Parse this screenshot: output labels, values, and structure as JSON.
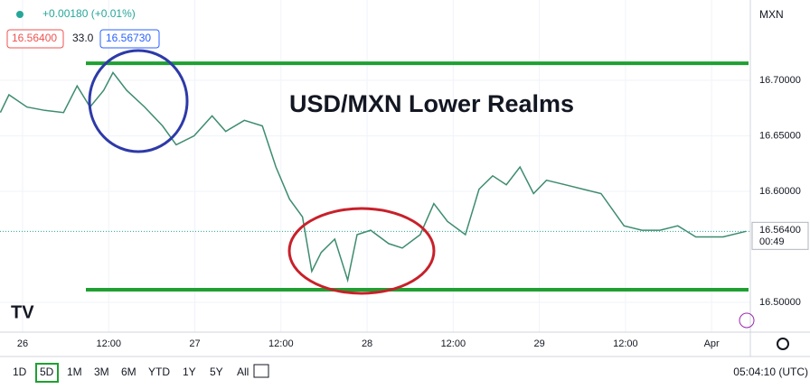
{
  "chart_data": {
    "type": "line",
    "title": "USD/MXN Lower Realms",
    "change": "+0.00180 (+0.01%)",
    "bid": "16.56400",
    "spread": "33.0",
    "ask": "16.56730",
    "currency": "MXN",
    "last_price": 16.564,
    "last_price_label": "16.56400",
    "countdown": "00:49",
    "ranges": [
      "1D",
      "5D",
      "1M",
      "3M",
      "6M",
      "YTD",
      "1Y",
      "5Y",
      "All"
    ],
    "active_range": "5D",
    "clock": "05:04:10 (UTC)",
    "x": [
      -3.1,
      -1.9,
      0.6,
      3.1,
      5.7,
      7.6,
      9.4,
      11.3,
      12.6,
      14.5,
      17.0,
      19.5,
      21.4,
      23.9,
      26.4,
      28.3,
      30.9,
      33.4,
      35.3,
      37.2,
      39.0,
      40.3,
      41.6,
      43.5,
      45.3,
      46.6,
      48.5,
      51.0,
      52.9,
      55.4,
      57.3,
      59.2,
      61.7,
      63.6,
      65.5,
      67.4,
      69.3,
      71.2,
      73.0,
      75.6,
      78.1,
      80.6,
      83.8,
      86.3,
      88.8,
      91.3,
      93.8,
      95.7,
      97.6,
      100.8
    ],
    "series": [
      {
        "name": "USD/MXN",
        "color": "#3d8c6e",
        "values": [
          16.671,
          16.687,
          16.676,
          16.673,
          16.671,
          16.695,
          16.676,
          16.691,
          16.707,
          16.691,
          16.676,
          16.659,
          16.642,
          16.65,
          16.668,
          16.654,
          16.664,
          16.659,
          16.622,
          16.593,
          16.577,
          16.528,
          16.545,
          16.557,
          16.52,
          16.561,
          16.565,
          16.553,
          16.549,
          16.561,
          16.589,
          16.573,
          16.561,
          16.602,
          16.614,
          16.606,
          16.622,
          16.598,
          16.61,
          16.606,
          16.602,
          16.598,
          16.569,
          16.565,
          16.565,
          16.569,
          16.559,
          16.559,
          16.559,
          16.564
        ]
      }
    ],
    "levels": [
      {
        "value": 16.7154,
        "color": "#1fa032"
      },
      {
        "value": 16.5114,
        "color": "#1fa032"
      }
    ],
    "xlim": [
      -3.15,
      101.4
    ],
    "xticks": [
      {
        "value": 0,
        "label": "26"
      },
      {
        "value": 12,
        "label": "12:00"
      },
      {
        "value": 24,
        "label": "27"
      },
      {
        "value": 36,
        "label": "12:00"
      },
      {
        "value": 48,
        "label": "28"
      },
      {
        "value": 60,
        "label": "12:00"
      },
      {
        "value": 72,
        "label": "29"
      },
      {
        "value": 84,
        "label": "12:00"
      },
      {
        "value": 96,
        "label": "Apr"
      }
    ],
    "ylim": [
      16.4732,
      16.7724
    ],
    "yticks": [
      {
        "value": 16.5,
        "label": "16.50000"
      },
      {
        "value": 16.6,
        "label": "16.60000"
      },
      {
        "value": 16.65,
        "label": "16.65000"
      },
      {
        "value": 16.7,
        "label": "16.70000"
      }
    ],
    "grid": true
  }
}
